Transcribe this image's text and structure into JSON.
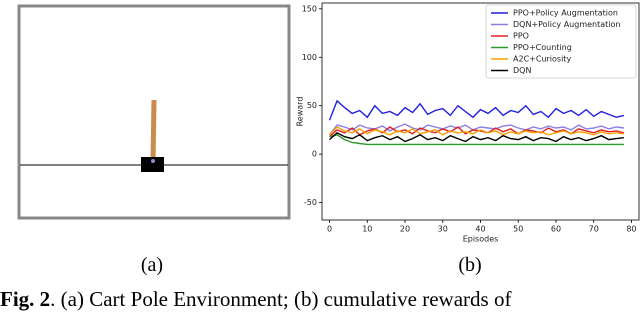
{
  "figure": {
    "panel_labels": [
      "(a)",
      "(b)"
    ],
    "caption": {
      "label": "Fig. 2",
      "text": ". (a) Cart Pole Environment; (b) cumulative rewards of"
    }
  },
  "chart_data": {
    "type": "line",
    "x_label": "Episodes",
    "y_label": "Reward",
    "x": [
      0,
      2,
      4,
      6,
      8,
      10,
      12,
      14,
      16,
      18,
      20,
      22,
      24,
      26,
      28,
      30,
      32,
      34,
      36,
      38,
      40,
      42,
      44,
      46,
      48,
      50,
      52,
      54,
      56,
      58,
      60,
      62,
      64,
      66,
      68,
      70,
      72,
      74,
      76,
      78
    ],
    "xlim": [
      -2,
      82
    ],
    "xticks": [
      0,
      10,
      20,
      30,
      40,
      50,
      60,
      70,
      80
    ],
    "ylim": [
      -68,
      156
    ],
    "yticks": [
      -50,
      0,
      50,
      100,
      150
    ],
    "legend": "upper right",
    "series": [
      {
        "name": "PPO+Policy Augmentation",
        "color": "#1f1fe0",
        "values": [
          35,
          55,
          48,
          42,
          45,
          38,
          50,
          42,
          44,
          40,
          48,
          43,
          52,
          41,
          45,
          47,
          40,
          50,
          44,
          38,
          46,
          42,
          48,
          40,
          45,
          43,
          50,
          41,
          44,
          38,
          47,
          42,
          45,
          40,
          46,
          39,
          44,
          41,
          38,
          40
        ]
      },
      {
        "name": "DQN+Policy Augmentation",
        "color": "#8a7fe8",
        "values": [
          20,
          30,
          28,
          25,
          30,
          27,
          26,
          29,
          24,
          28,
          31,
          27,
          25,
          30,
          28,
          26,
          29,
          27,
          30,
          25,
          28,
          27,
          26,
          29,
          30,
          27,
          25,
          28,
          26,
          29,
          27,
          28,
          25,
          30,
          26,
          27,
          29,
          26,
          28,
          27
        ]
      },
      {
        "name": "PPO",
        "color": "#e02020",
        "values": [
          18,
          25,
          22,
          27,
          20,
          24,
          26,
          22,
          28,
          23,
          25,
          21,
          27,
          24,
          22,
          26,
          23,
          28,
          21,
          25,
          24,
          22,
          27,
          23,
          26,
          21,
          25,
          24,
          22,
          27,
          23,
          25,
          21,
          26,
          24,
          22,
          25,
          23,
          24,
          22
        ]
      },
      {
        "name": "PPO+Counting",
        "color": "#2a9a2a",
        "values": [
          18,
          20,
          15,
          12,
          11,
          10,
          10,
          10,
          10,
          10,
          10,
          10,
          10,
          10,
          10,
          10,
          10,
          10,
          10,
          10,
          10,
          10,
          10,
          10,
          10,
          10,
          10,
          10,
          10,
          10,
          10,
          10,
          10,
          10,
          10,
          10,
          10,
          10,
          10,
          10
        ]
      },
      {
        "name": "A2C+Curiosity",
        "color": "#f5a000",
        "values": [
          20,
          28,
          24,
          22,
          26,
          21,
          25,
          23,
          20,
          24,
          22,
          26,
          21,
          23,
          25,
          20,
          24,
          22,
          23,
          21,
          25,
          22,
          24,
          20,
          23,
          21,
          24,
          22,
          23,
          20,
          22,
          24,
          21,
          23,
          22,
          20,
          23,
          21,
          22,
          21
        ]
      },
      {
        "name": "DQN",
        "color": "#000000",
        "values": [
          15,
          22,
          18,
          16,
          20,
          14,
          17,
          19,
          15,
          18,
          13,
          16,
          20,
          15,
          17,
          14,
          19,
          16,
          13,
          18,
          15,
          17,
          14,
          19,
          16,
          15,
          18,
          14,
          17,
          16,
          13,
          18,
          15,
          17,
          14,
          16,
          19,
          15,
          16,
          17
        ]
      }
    ]
  }
}
